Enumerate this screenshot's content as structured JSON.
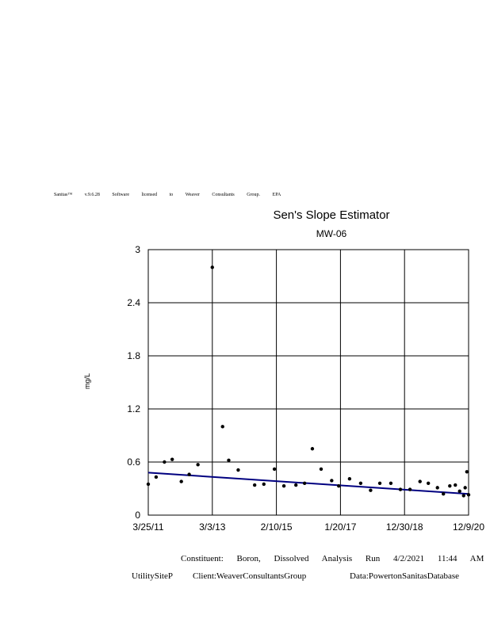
{
  "license_line": "Sanitas™ v.9.6.28 Software licensed to Weaver Consultants Group. EPA",
  "footer": {
    "constituent": "Constituent: Boron, Dissolved Analysis Run 4/2/2021 11:44 AM",
    "site": "UtilitySiteP",
    "client": "Client:WeaverConsultantsGroup",
    "database": "Data:PowertonSanitasDatabase"
  },
  "chart_data": {
    "type": "scatter",
    "title": "Sen's Slope Estimator",
    "subtitle": "MW-06",
    "xlabel": "",
    "ylabel": "mg/L",
    "xlim": [
      "2011-03-25",
      "2020-12-09"
    ],
    "ylim": [
      0,
      3
    ],
    "x_ticks": [
      "3/25/11",
      "3/3/13",
      "2/10/15",
      "1/20/17",
      "12/30/18",
      "12/9/20"
    ],
    "y_ticks": [
      "0",
      "0.6",
      "1.2",
      "1.8",
      "2.4",
      "3"
    ],
    "grid": true,
    "legend": "none",
    "colors": {
      "points": "#000000",
      "trend": "#000080",
      "grid": "#000000"
    },
    "series": [
      {
        "type": "scatter",
        "points": [
          {
            "x": "2011-03-25",
            "y": 0.35
          },
          {
            "x": "2011-06-20",
            "y": 0.43
          },
          {
            "x": "2011-09-20",
            "y": 0.6
          },
          {
            "x": "2011-12-15",
            "y": 0.63
          },
          {
            "x": "2012-03-25",
            "y": 0.38
          },
          {
            "x": "2012-06-20",
            "y": 0.46
          },
          {
            "x": "2012-09-25",
            "y": 0.57
          },
          {
            "x": "2013-03-03",
            "y": 2.8
          },
          {
            "x": "2013-06-25",
            "y": 1.0
          },
          {
            "x": "2013-09-01",
            "y": 0.62
          },
          {
            "x": "2013-12-15",
            "y": 0.51
          },
          {
            "x": "2014-06-15",
            "y": 0.34
          },
          {
            "x": "2014-09-25",
            "y": 0.35
          },
          {
            "x": "2015-01-20",
            "y": 0.52
          },
          {
            "x": "2015-05-05",
            "y": 0.33
          },
          {
            "x": "2015-09-15",
            "y": 0.34
          },
          {
            "x": "2015-12-20",
            "y": 0.36
          },
          {
            "x": "2016-03-15",
            "y": 0.75
          },
          {
            "x": "2016-06-20",
            "y": 0.52
          },
          {
            "x": "2016-10-15",
            "y": 0.39
          },
          {
            "x": "2017-01-01",
            "y": 0.33
          },
          {
            "x": "2017-05-01",
            "y": 0.41
          },
          {
            "x": "2017-09-01",
            "y": 0.36
          },
          {
            "x": "2017-12-20",
            "y": 0.28
          },
          {
            "x": "2018-04-01",
            "y": 0.36
          },
          {
            "x": "2018-08-01",
            "y": 0.36
          },
          {
            "x": "2018-11-15",
            "y": 0.29
          },
          {
            "x": "2019-03-01",
            "y": 0.29
          },
          {
            "x": "2019-06-20",
            "y": 0.38
          },
          {
            "x": "2019-09-20",
            "y": 0.36
          },
          {
            "x": "2019-12-30",
            "y": 0.31
          },
          {
            "x": "2020-03-05",
            "y": 0.24
          },
          {
            "x": "2020-05-15",
            "y": 0.33
          },
          {
            "x": "2020-07-15",
            "y": 0.34
          },
          {
            "x": "2020-09-01",
            "y": 0.27
          },
          {
            "x": "2020-10-15",
            "y": 0.22
          },
          {
            "x": "2020-11-01",
            "y": 0.31
          },
          {
            "x": "2020-11-20",
            "y": 0.49
          },
          {
            "x": "2020-12-09",
            "y": 0.23
          }
        ]
      },
      {
        "type": "trend_line",
        "points": [
          {
            "x": "2011-03-25",
            "y": 0.48
          },
          {
            "x": "2020-12-09",
            "y": 0.24
          }
        ]
      }
    ]
  }
}
